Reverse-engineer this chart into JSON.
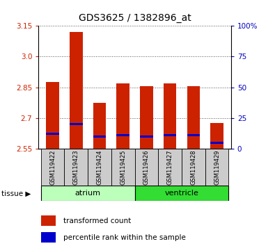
{
  "title": "GDS3625 / 1382896_at",
  "samples": [
    "GSM119422",
    "GSM119423",
    "GSM119424",
    "GSM119425",
    "GSM119426",
    "GSM119427",
    "GSM119428",
    "GSM119429"
  ],
  "transformed_count": [
    2.875,
    3.12,
    2.775,
    2.868,
    2.856,
    2.868,
    2.857,
    2.675
  ],
  "percentile_rank": [
    12,
    20,
    10,
    11,
    10,
    11,
    11,
    5
  ],
  "ylim_left": [
    2.55,
    3.15
  ],
  "ylim_right": [
    0,
    100
  ],
  "yticks_left": [
    2.55,
    2.7,
    2.85,
    3.0,
    3.15
  ],
  "yticks_right": [
    0,
    25,
    50,
    75,
    100
  ],
  "yticklabels_right": [
    "0",
    "25",
    "50",
    "75",
    "100%"
  ],
  "bar_bottom": 2.55,
  "bar_color": "#cc2200",
  "percentile_color": "#0000cc",
  "bar_width": 0.55,
  "tissue_groups": [
    {
      "label": "atrium",
      "start": 0,
      "end": 3,
      "color": "#bbffbb"
    },
    {
      "label": "ventricle",
      "start": 4,
      "end": 7,
      "color": "#33dd33"
    }
  ],
  "tissue_label": "tissue",
  "legend_entries": [
    "transformed count",
    "percentile rank within the sample"
  ],
  "legend_colors": [
    "#cc2200",
    "#0000cc"
  ],
  "left_tick_color": "#cc2200",
  "right_tick_color": "#0000bb",
  "background_sample_row": "#cccccc",
  "title_fontsize": 10
}
